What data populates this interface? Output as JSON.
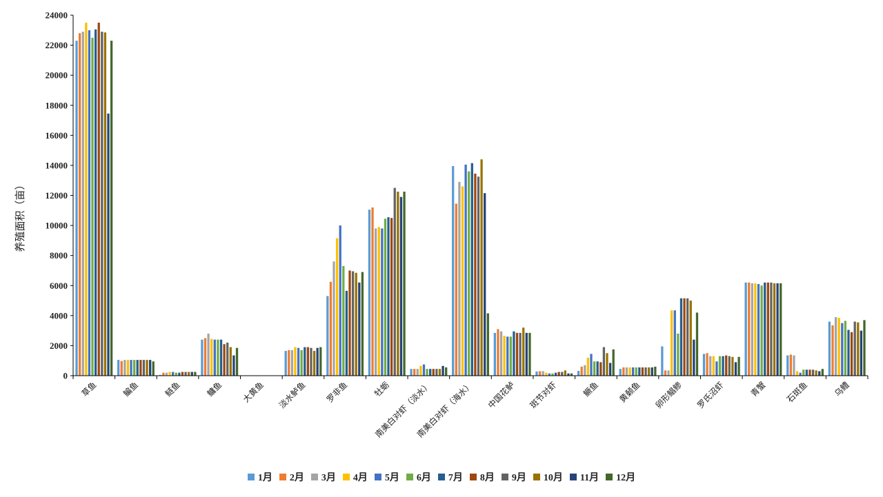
{
  "chart_data": {
    "type": "bar",
    "ylabel": "养殖面积（亩）",
    "ylim": [
      0,
      24000
    ],
    "yticks": [
      0,
      2000,
      4000,
      6000,
      8000,
      10000,
      12000,
      14000,
      16000,
      18000,
      20000,
      22000,
      24000
    ],
    "grid": false,
    "legend_position": "bottom",
    "categories": [
      "草鱼",
      "鳊鱼",
      "鲢鱼",
      "鳙鱼",
      "大黄鱼",
      "淡水鲈鱼",
      "罗非鱼",
      "牡蛎",
      "南美白对虾（淡水）",
      "南美白对虾（海水）",
      "中国花鲈",
      "斑节对虾",
      "鳜鱼",
      "黄颡鱼",
      "卵形鲳鲹",
      "罗氏沼虾",
      "青蟹",
      "石斑鱼",
      "乌鳢"
    ],
    "series": [
      {
        "name": "1月",
        "color": "#5b9bd5",
        "values": [
          22300,
          1050,
          50,
          2400,
          0,
          1650,
          5300,
          11050,
          450,
          13950,
          2850,
          280,
          320,
          450,
          1950,
          1450,
          6200,
          1350,
          3600
        ]
      },
      {
        "name": "2月",
        "color": "#ed7d31",
        "values": [
          22800,
          980,
          200,
          2500,
          0,
          1700,
          6250,
          11200,
          450,
          11450,
          3100,
          300,
          600,
          550,
          350,
          1500,
          6200,
          1400,
          3350
        ]
      },
      {
        "name": "3月",
        "color": "#a5a5a5",
        "values": [
          22900,
          1050,
          200,
          2800,
          0,
          1700,
          7600,
          9800,
          450,
          12900,
          2950,
          300,
          700,
          550,
          350,
          1300,
          6150,
          1350,
          3900
        ]
      },
      {
        "name": "4月",
        "color": "#ffc000",
        "values": [
          23500,
          1050,
          250,
          2450,
          0,
          1900,
          9150,
          9900,
          650,
          12600,
          2650,
          200,
          1200,
          550,
          4350,
          1300,
          6150,
          300,
          3850
        ]
      },
      {
        "name": "5月",
        "color": "#4472c4",
        "values": [
          23000,
          1050,
          250,
          2400,
          0,
          1850,
          10000,
          9800,
          750,
          14050,
          2600,
          150,
          1450,
          550,
          4350,
          950,
          6100,
          200,
          3500
        ]
      },
      {
        "name": "6月",
        "color": "#70ad47",
        "values": [
          22500,
          1050,
          200,
          2400,
          0,
          1700,
          7300,
          10450,
          450,
          13600,
          2600,
          150,
          950,
          550,
          2800,
          1300,
          6000,
          400,
          3650
        ]
      },
      {
        "name": "7月",
        "color": "#255e91",
        "values": [
          23050,
          1050,
          200,
          2400,
          0,
          1900,
          5650,
          10550,
          450,
          14150,
          2950,
          200,
          950,
          550,
          5150,
          1300,
          6200,
          400,
          3050
        ]
      },
      {
        "name": "8月",
        "color": "#9e480e",
        "values": [
          23500,
          1050,
          250,
          2100,
          0,
          1900,
          7000,
          10500,
          450,
          13450,
          2850,
          250,
          900,
          550,
          5150,
          1350,
          6200,
          400,
          2900
        ]
      },
      {
        "name": "9月",
        "color": "#636363",
        "values": [
          22900,
          1050,
          250,
          2200,
          0,
          1850,
          6950,
          12500,
          450,
          13250,
          2850,
          250,
          1900,
          550,
          5150,
          1300,
          6200,
          400,
          3600
        ]
      },
      {
        "name": "10月",
        "color": "#997300",
        "values": [
          22850,
          1050,
          250,
          1900,
          0,
          1650,
          6850,
          12250,
          450,
          14400,
          3200,
          350,
          1500,
          550,
          5000,
          1250,
          6150,
          350,
          3550
        ]
      },
      {
        "name": "11月",
        "color": "#264478",
        "values": [
          17450,
          1050,
          250,
          1350,
          0,
          1850,
          6200,
          11900,
          650,
          12150,
          2850,
          150,
          850,
          550,
          2400,
          900,
          6150,
          300,
          3000
        ]
      },
      {
        "name": "12月",
        "color": "#43682b",
        "values": [
          22300,
          950,
          250,
          1850,
          0,
          1900,
          6900,
          12250,
          550,
          4150,
          2850,
          150,
          1750,
          600,
          4200,
          1250,
          6150,
          450,
          3700
        ]
      }
    ]
  }
}
